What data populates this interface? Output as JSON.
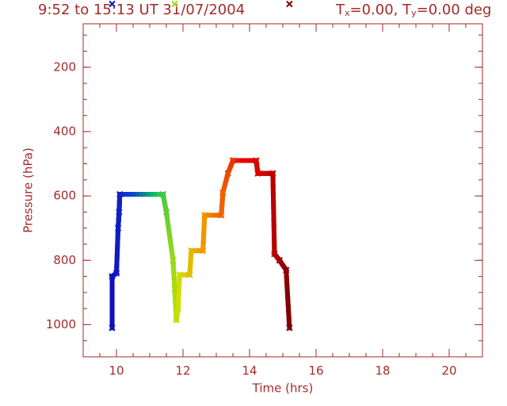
{
  "chart_data": {
    "type": "trajectory",
    "title": "9:52 to 15:13 UT 31/07/2004",
    "subtitle": [
      {
        "text": "T",
        "sub": "x",
        "rest": "=0.00, "
      },
      {
        "text": "T",
        "sub": "y",
        "rest": "=0.00 deg"
      }
    ],
    "xlabel": "Time  (hrs)",
    "ylabel": "Pressure  (hPa)",
    "x": [
      9.87,
      9.87,
      10.0,
      10.05,
      10.08,
      10.1,
      11.4,
      11.5,
      11.7,
      11.75,
      11.8,
      11.85,
      11.9,
      12.2,
      12.25,
      12.6,
      12.65,
      13.15,
      13.2,
      13.35,
      13.5,
      14.2,
      14.25,
      14.7,
      14.75,
      14.9,
      15.1,
      15.2
    ],
    "values": [
      1010,
      850,
      840,
      700,
      650,
      595,
      595,
      650,
      800,
      890,
      985,
      950,
      845,
      845,
      770,
      770,
      660,
      660,
      590,
      530,
      490,
      490,
      530,
      530,
      780,
      800,
      830,
      1010
    ],
    "colormap": [
      "#1010c0",
      "#1040d0",
      "#00c060",
      "#d0e000",
      "#f0a000",
      "#f06000",
      "#e80000",
      "#d00000",
      "#800000"
    ],
    "top_marker_indices": [
      0,
      9,
      27
    ],
    "xlim": [
      9,
      21
    ],
    "xticks": [
      10,
      12,
      14,
      16,
      18,
      20
    ],
    "xminor_step": 0.5,
    "ylim": [
      1100,
      65
    ],
    "yticks": [
      200,
      400,
      600,
      800,
      1000
    ],
    "yminor_step": 50
  }
}
